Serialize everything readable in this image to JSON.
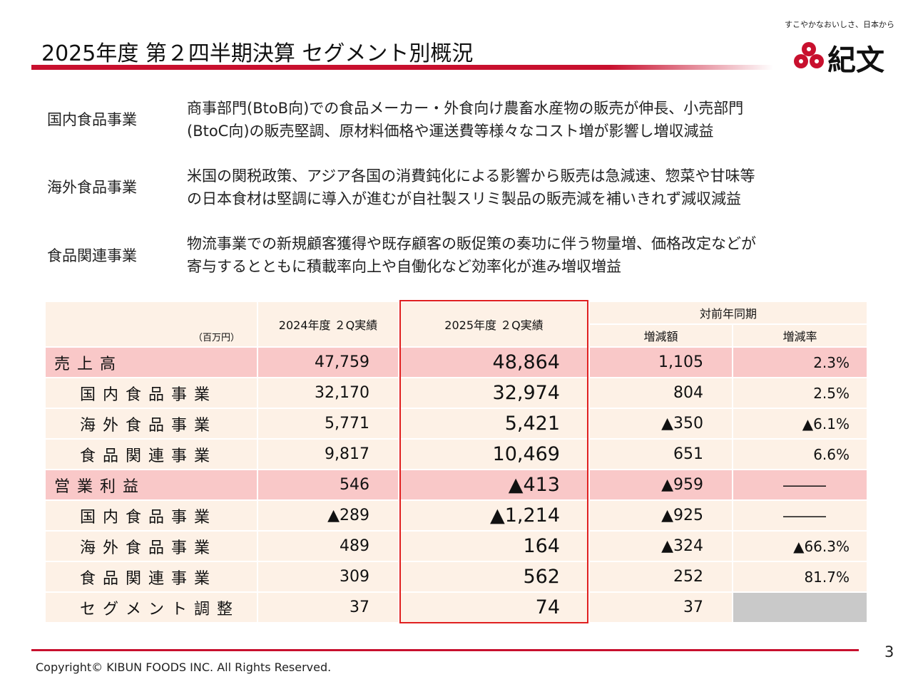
{
  "header": {
    "title": "2025年度  第２四半期決算  セグメント別概況",
    "tagline": "すこやかなおいしさ、日本から",
    "logo_text": "紀文"
  },
  "segments": [
    {
      "label": "国内食品事業",
      "desc_line1": "商事部門(BtoB向)での食品メーカー・外食向け農畜水産物の販売が伸長、小売部門",
      "desc_line2": "(BtoC向)の販売堅調、原材料価格や運送費等様々なコスト増が影響し増収減益"
    },
    {
      "label": "海外食品事業",
      "desc_line1": "米国の関税政策、アジア各国の消費鈍化による影響から販売は急減速、惣菜や甘味等",
      "desc_line2": "の日本食材は堅調に導入が進むが自社製スリミ製品の販売減を補いきれず減収減益"
    },
    {
      "label": "食品関連事業",
      "desc_line1": "物流事業での新規顧客獲得や既存顧客の販促策の奏功に伴う物量増、価格改定などが",
      "desc_line2": "寄与するとともに積載率向上や自働化など効率化が進み増収増益"
    }
  ],
  "table": {
    "unit": "（百万円）",
    "col_prev": "2024年度 ２Q実績",
    "col_cur": "2025年度 ２Q実績",
    "col_yoy": "対前年同期",
    "col_diff": "増減額",
    "col_rate": "増減率",
    "rows": [
      {
        "name": "売上高",
        "prev": "47,759",
        "cur": "48,864",
        "diff": "1,105",
        "rate": "2.3%"
      },
      {
        "name": "国内食品事業",
        "prev": "32,170",
        "cur": "32,974",
        "diff": "804",
        "rate": "2.5%"
      },
      {
        "name": "海外食品事業",
        "prev": "5,771",
        "cur": "5,421",
        "diff": "▲350",
        "rate": "▲6.1%"
      },
      {
        "name": "食品関連事業",
        "prev": "9,817",
        "cur": "10,469",
        "diff": "651",
        "rate": "6.6%"
      },
      {
        "name": "営業利益",
        "prev": "546",
        "cur": "▲413",
        "diff": "▲959",
        "rate": "―――"
      },
      {
        "name": "国内食品事業",
        "prev": "▲289",
        "cur": "▲1,214",
        "diff": "▲925",
        "rate": "―――"
      },
      {
        "name": "海外食品事業",
        "prev": "489",
        "cur": "164",
        "diff": "▲324",
        "rate": "▲66.3%"
      },
      {
        "name": "食品関連事業",
        "prev": "309",
        "cur": "562",
        "diff": "252",
        "rate": "81.7%"
      },
      {
        "name": "セグメント調整",
        "prev": "37",
        "cur": "74",
        "diff": "37",
        "rate": ""
      }
    ]
  },
  "footer": {
    "copyright": "Copyright©  KIBUN FOODS INC. All Rights Reserved.",
    "page_number": "3"
  },
  "colors": {
    "accent": "#c8102e",
    "row_bg": "#fdf1e6",
    "row_highlight": "#f9c8c8",
    "box": "#e02020"
  }
}
